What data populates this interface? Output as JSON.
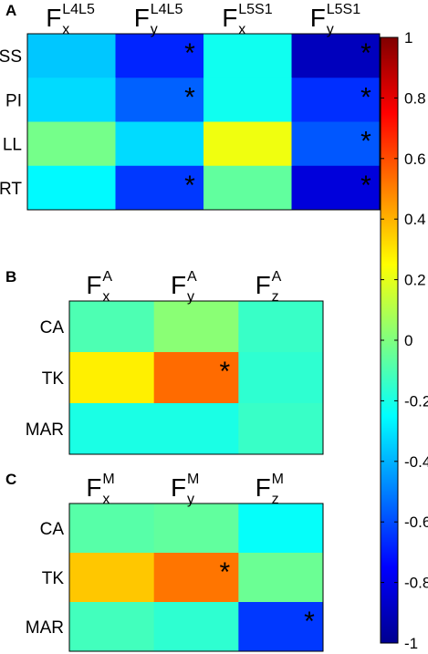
{
  "chart_data": [
    {
      "type": "heatmap",
      "panel": "A",
      "columns": [
        {
          "base": "F",
          "sub": "x",
          "sup": "L4L5"
        },
        {
          "base": "F",
          "sub": "y",
          "sup": "L4L5"
        },
        {
          "base": "F",
          "sub": "x",
          "sup": "L5S1"
        },
        {
          "base": "F",
          "sub": "y",
          "sup": "L5S1"
        }
      ],
      "rows": [
        "SS",
        "PI",
        "LL",
        "RT"
      ],
      "values": [
        [
          -0.36,
          -0.68,
          -0.22,
          -0.88
        ],
        [
          -0.32,
          -0.56,
          -0.22,
          -0.66
        ],
        [
          -0.02,
          -0.32,
          0.22,
          -0.58
        ],
        [
          -0.26,
          -0.64,
          -0.06,
          -0.82
        ]
      ],
      "significant": [
        [
          false,
          true,
          false,
          true
        ],
        [
          false,
          true,
          false,
          true
        ],
        [
          false,
          false,
          false,
          true
        ],
        [
          false,
          true,
          false,
          true
        ]
      ]
    },
    {
      "type": "heatmap",
      "panel": "B",
      "columns": [
        {
          "base": "F",
          "sub": "x",
          "sup": "A"
        },
        {
          "base": "F",
          "sub": "y",
          "sup": "A"
        },
        {
          "base": "F",
          "sub": "z",
          "sup": "A"
        }
      ],
      "rows": [
        "CA",
        "TK",
        "MAR"
      ],
      "values": [
        [
          -0.1,
          0.02,
          -0.14
        ],
        [
          0.28,
          0.54,
          -0.16
        ],
        [
          -0.2,
          -0.2,
          -0.14
        ]
      ],
      "significant": [
        [
          false,
          false,
          false
        ],
        [
          false,
          true,
          false
        ],
        [
          false,
          false,
          false
        ]
      ]
    },
    {
      "type": "heatmap",
      "panel": "C",
      "columns": [
        {
          "base": "F",
          "sub": "x",
          "sup": "M"
        },
        {
          "base": "F",
          "sub": "y",
          "sup": "M"
        },
        {
          "base": "F",
          "sub": "z",
          "sup": "M"
        }
      ],
      "rows": [
        "CA",
        "TK",
        "MAR"
      ],
      "values": [
        [
          -0.08,
          -0.06,
          -0.24
        ],
        [
          0.36,
          0.52,
          -0.04
        ],
        [
          -0.12,
          -0.16,
          -0.64
        ]
      ],
      "significant": [
        [
          false,
          false,
          false
        ],
        [
          false,
          true,
          false
        ],
        [
          false,
          false,
          true
        ]
      ]
    }
  ],
  "colorbar": {
    "min": -1,
    "max": 1,
    "ticks": [
      "1",
      "0.8",
      "0.6",
      "0.4",
      "0.2",
      "0",
      "-0.2",
      "-0.4",
      "-0.6",
      "-0.8",
      "-1"
    ],
    "colormap": "jet"
  },
  "significance_marker": "*"
}
